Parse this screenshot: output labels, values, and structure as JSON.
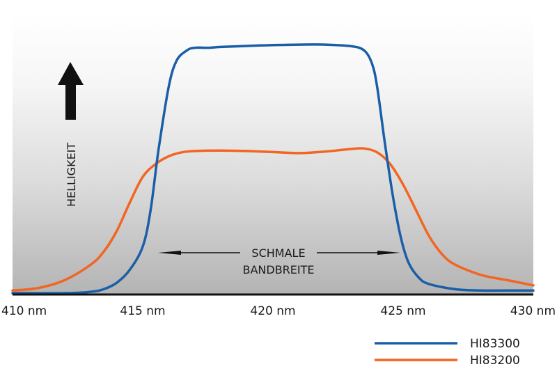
{
  "chart_data": {
    "type": "line",
    "title": "",
    "xlabel": "",
    "ylabel": "HELLIGKEIT",
    "x_unit": "nm",
    "xlim": [
      410,
      430
    ],
    "ylim": [
      0,
      100
    ],
    "grid": true,
    "legend_position": "bottom-right",
    "x_ticks": [
      410,
      415,
      420,
      425,
      430
    ],
    "x_tick_labels": [
      "410 nm",
      "415 nm",
      "420 nm",
      "425 nm",
      "430 nm"
    ],
    "annotation": {
      "line1": "SCHMALE",
      "line2": "BANDBREITE",
      "from_nm": 415.3,
      "to_nm": 424.5
    },
    "series": [
      {
        "name": "HI83300",
        "color": "#1a5ea8",
        "x": [
          410,
          412,
          413,
          413.5,
          414,
          414.5,
          415,
          415.3,
          415.6,
          416,
          416.3,
          416.7,
          417,
          417.5,
          418,
          419,
          420,
          421,
          422,
          423,
          423.5,
          423.8,
          424,
          424.3,
          424.6,
          424.9,
          425.2,
          425.6,
          426,
          427,
          428,
          429,
          430
        ],
        "y": [
          0,
          0,
          0.5,
          1.5,
          4,
          9,
          18,
          32,
          55,
          80,
          90,
          94,
          95,
          95,
          95.3,
          95.7,
          96,
          96.2,
          96.2,
          95.6,
          94,
          89,
          80,
          58,
          38,
          22,
          12,
          6,
          3.5,
          1.5,
          1,
          1,
          1
        ]
      },
      {
        "name": "HI83200",
        "color": "#f26522",
        "x": [
          410,
          411,
          412,
          413,
          413.5,
          414,
          414.5,
          415,
          415.5,
          416,
          416.5,
          417,
          418,
          419,
          420,
          421,
          422,
          423,
          423.5,
          424,
          424.5,
          425,
          425.5,
          426,
          426.5,
          427,
          428,
          429,
          430
        ],
        "y": [
          1,
          2,
          5,
          11,
          16,
          24,
          35,
          45,
          50,
          53,
          54.5,
          55,
          55.2,
          55,
          54.6,
          54.2,
          54.8,
          55.8,
          56,
          54.5,
          50,
          42,
          32,
          22,
          15,
          11,
          7,
          5,
          3
        ]
      }
    ]
  },
  "legend": {
    "items": [
      {
        "label": "HI83300",
        "color": "#1a5ea8"
      },
      {
        "label": "HI83200",
        "color": "#f26522"
      }
    ]
  },
  "colors": {
    "axis": "#111111",
    "grid": "#ffffff",
    "bg_top": "#ffffff",
    "bg_bottom": "#b8b8b8",
    "arrow": "#111111"
  }
}
